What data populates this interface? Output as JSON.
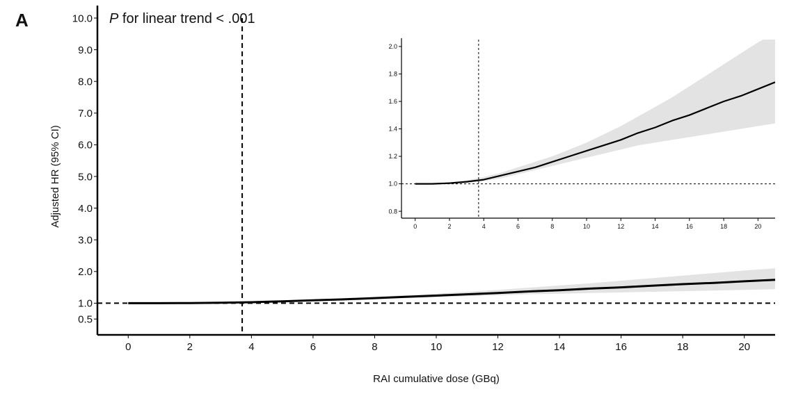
{
  "panel_label": "A",
  "annotation": {
    "italic": "P",
    "rest": " for linear trend < .001"
  },
  "chart_data": [
    {
      "type": "line",
      "xlabel": "RAI cumulative dose (GBq)",
      "ylabel": "Adjusted HR (95% CI)",
      "xlim": [
        -1,
        21
      ],
      "ylim": [
        0.0,
        10.0
      ],
      "x_ticks": [
        0,
        2,
        4,
        6,
        8,
        10,
        12,
        14,
        16,
        18,
        20
      ],
      "y_ticks": [
        0.5,
        1.0,
        2.0,
        3.0,
        4.0,
        5.0,
        6.0,
        7.0,
        8.0,
        9.0,
        10.0
      ],
      "y_tick_labels": [
        "0.5",
        "1.0",
        "2.0",
        "3.0",
        "4.0",
        "5.0",
        "6.0",
        "7.0",
        "8.0",
        "9.0",
        "10.0"
      ],
      "reference_y": 1.0,
      "reference_x": 3.7,
      "series": [
        {
          "x": [
            0,
            1,
            2,
            3,
            4,
            5,
            6,
            7,
            8,
            9,
            10,
            11,
            12,
            13,
            14,
            15,
            16,
            17,
            18,
            19,
            20,
            21
          ],
          "y": [
            1.0,
            1.0,
            1.005,
            1.015,
            1.03,
            1.06,
            1.09,
            1.12,
            1.16,
            1.2,
            1.24,
            1.28,
            1.32,
            1.37,
            1.41,
            1.46,
            1.5,
            1.55,
            1.6,
            1.64,
            1.69,
            1.74
          ],
          "lower": [
            1.0,
            1.0,
            1.0,
            1.005,
            1.02,
            1.04,
            1.07,
            1.1,
            1.13,
            1.16,
            1.19,
            1.22,
            1.25,
            1.28,
            1.3,
            1.32,
            1.34,
            1.36,
            1.38,
            1.4,
            1.42,
            1.44
          ],
          "upper": [
            1.0,
            1.0,
            1.01,
            1.025,
            1.05,
            1.08,
            1.12,
            1.16,
            1.2,
            1.25,
            1.3,
            1.36,
            1.42,
            1.49,
            1.56,
            1.63,
            1.71,
            1.79,
            1.87,
            1.95,
            2.03,
            2.1
          ]
        }
      ]
    },
    {
      "type": "line",
      "xlabel": "",
      "ylabel": "",
      "xlim": [
        -0.8,
        21
      ],
      "ylim": [
        0.75,
        2.05
      ],
      "x_ticks": [
        0,
        2,
        4,
        6,
        8,
        10,
        12,
        14,
        16,
        18,
        20
      ],
      "y_ticks": [
        0.8,
        1.0,
        1.2,
        1.4,
        1.6,
        1.8,
        2.0
      ],
      "y_tick_labels": [
        "0.8",
        "1.0",
        "1.2",
        "1.4",
        "1.6",
        "1.8",
        "2.0"
      ],
      "reference_y": 1.0,
      "reference_x": 3.7,
      "series": [
        {
          "x": [
            0,
            1,
            2,
            3,
            4,
            5,
            6,
            7,
            8,
            9,
            10,
            11,
            12,
            13,
            14,
            15,
            16,
            17,
            18,
            19,
            20,
            21
          ],
          "y": [
            1.0,
            1.0,
            1.005,
            1.015,
            1.03,
            1.06,
            1.09,
            1.12,
            1.16,
            1.2,
            1.24,
            1.28,
            1.32,
            1.37,
            1.41,
            1.46,
            1.5,
            1.55,
            1.6,
            1.64,
            1.69,
            1.74
          ],
          "lower": [
            1.0,
            1.0,
            1.0,
            1.005,
            1.02,
            1.04,
            1.07,
            1.1,
            1.13,
            1.16,
            1.19,
            1.22,
            1.25,
            1.28,
            1.3,
            1.32,
            1.34,
            1.36,
            1.38,
            1.4,
            1.42,
            1.44
          ],
          "upper": [
            1.0,
            1.0,
            1.01,
            1.025,
            1.05,
            1.08,
            1.12,
            1.16,
            1.2,
            1.25,
            1.3,
            1.36,
            1.42,
            1.49,
            1.56,
            1.63,
            1.71,
            1.79,
            1.87,
            1.95,
            2.03,
            2.1
          ]
        }
      ]
    }
  ],
  "colors": {
    "line": "#000000",
    "band": "#e3e3e3",
    "axis": "#000000"
  }
}
